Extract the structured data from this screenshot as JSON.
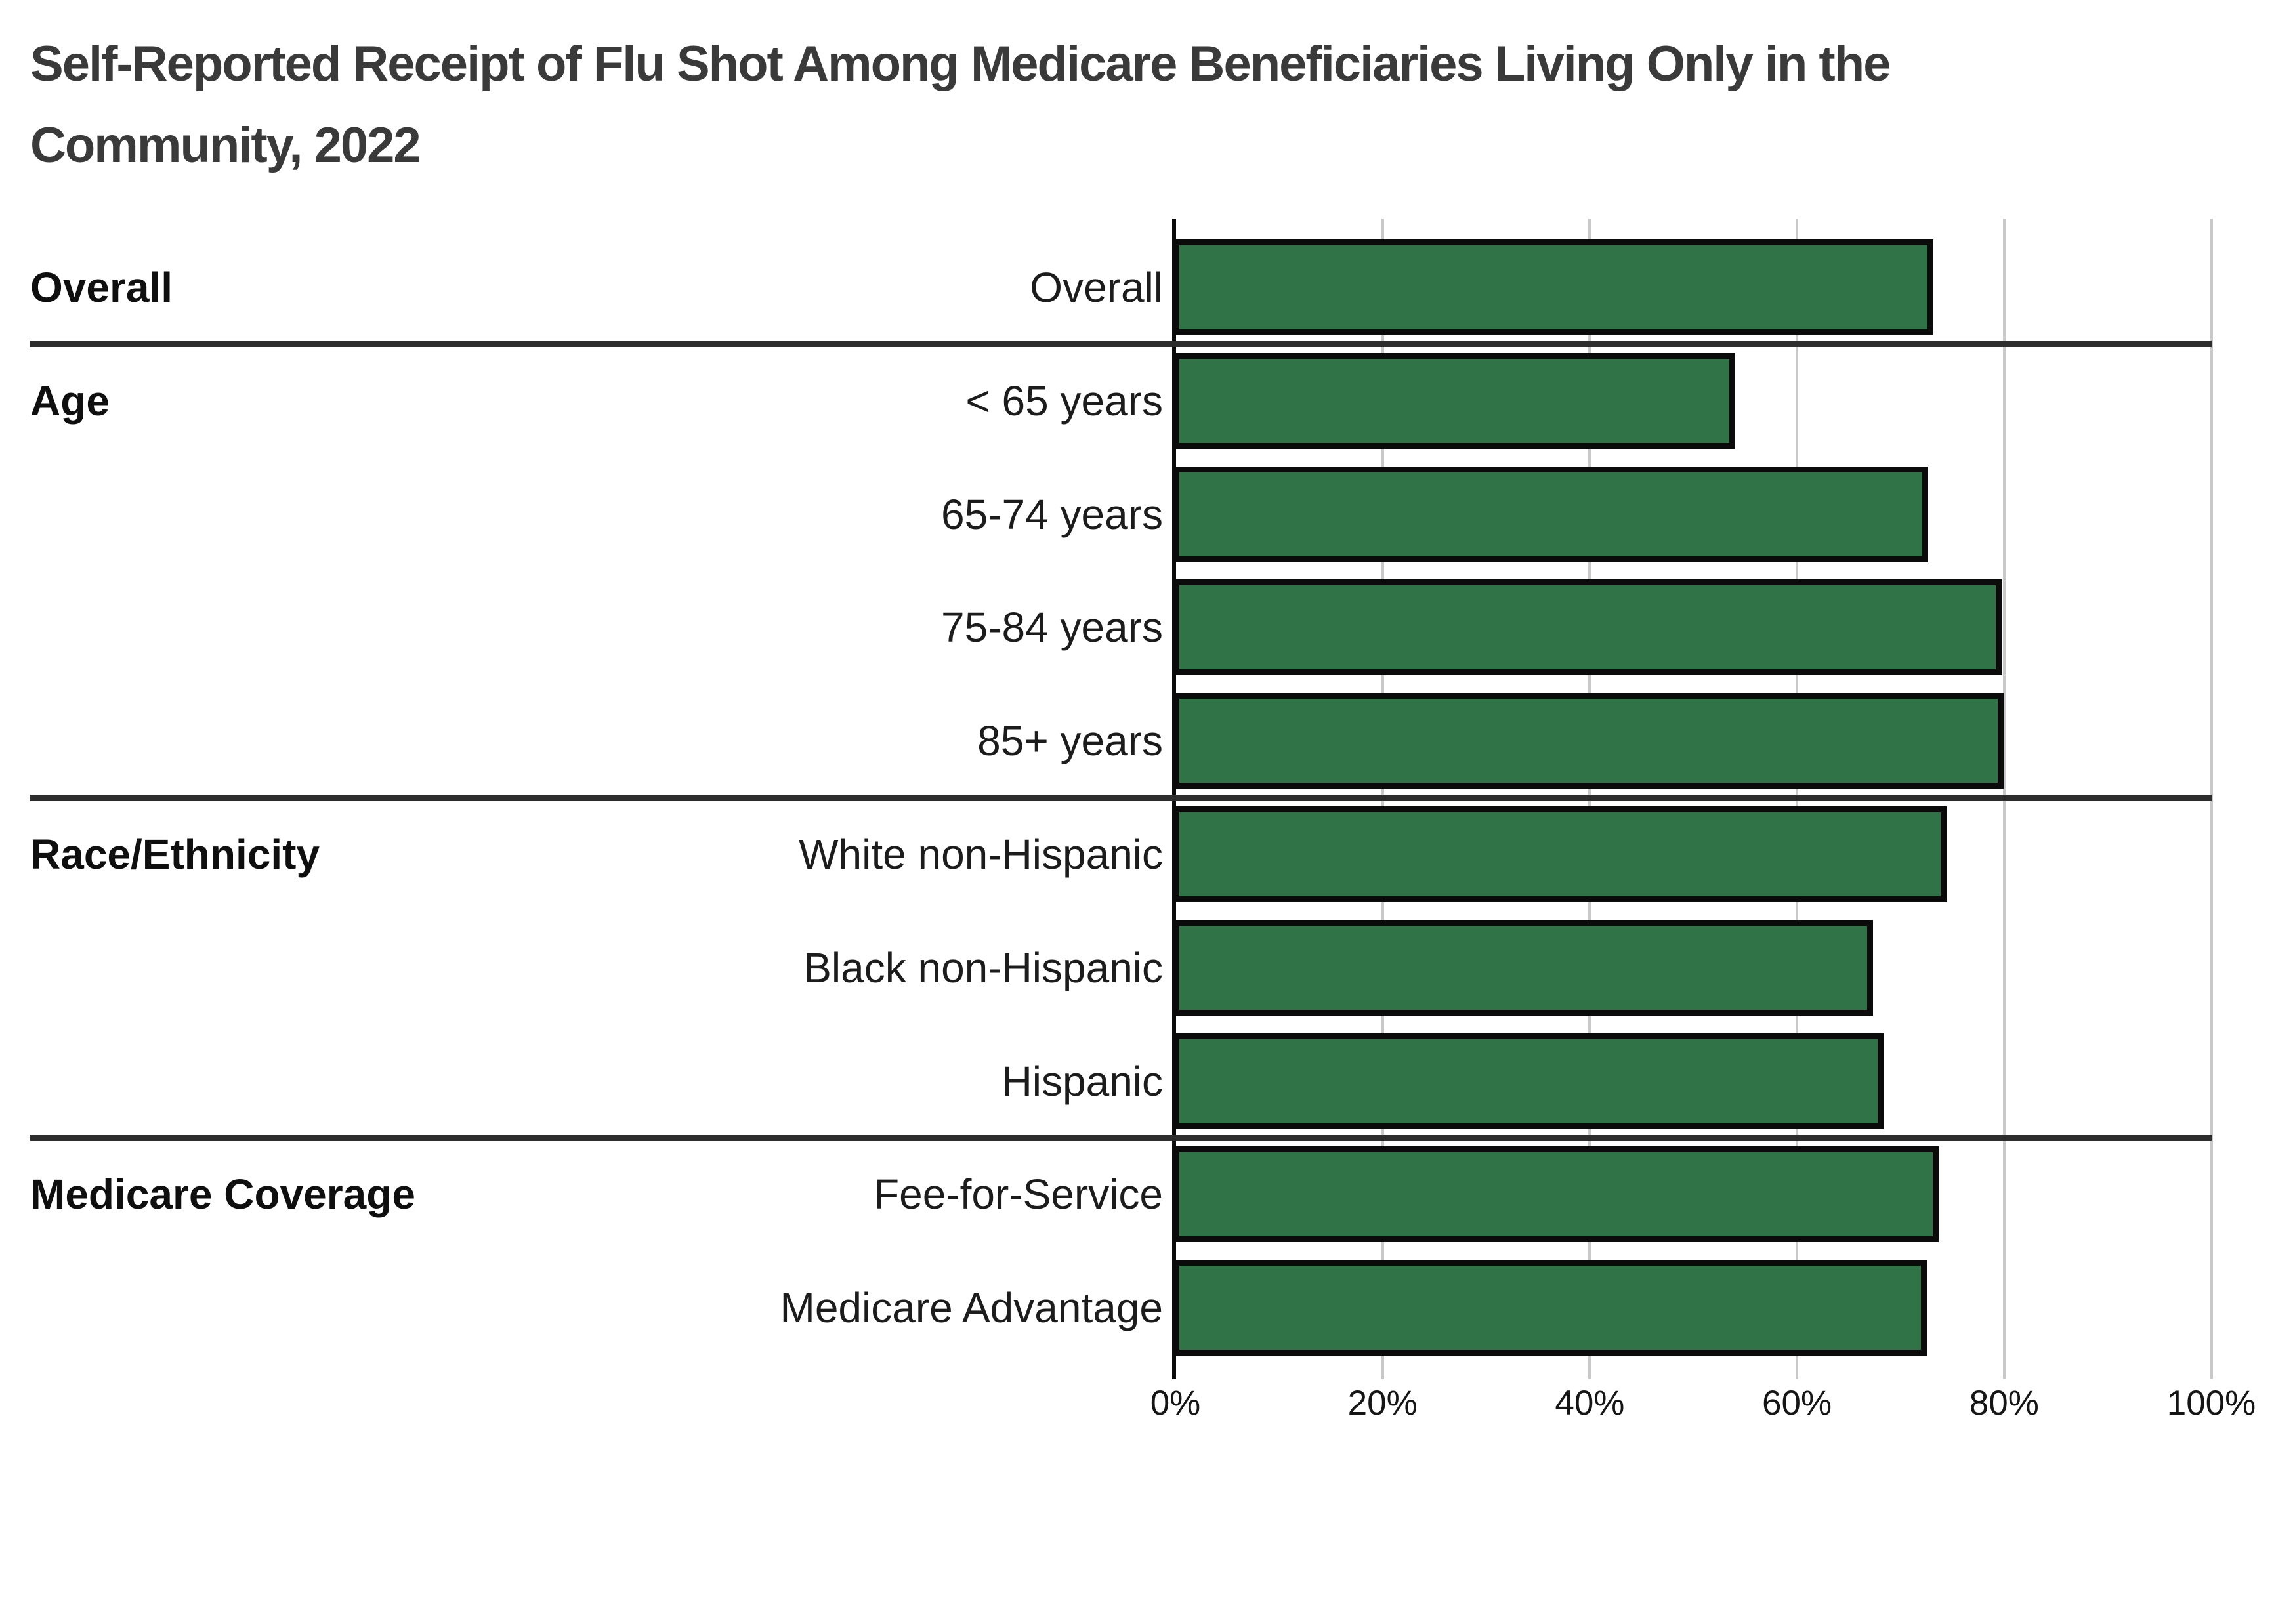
{
  "title": "Self-Reported Receipt of Flu Shot Among Medicare Beneficiaries Living Only in the Community, 2022",
  "title_lines": {
    "line1": "Self-Reported Receipt of Flu Shot Among Medicare Beneficiaries Living Only in the",
    "line2": "Community, 2022"
  },
  "colors": {
    "background": "#ffffff",
    "bar_fill": "#2f7346",
    "bar_border": "#0b0b0b",
    "gridline": "#c9c9c9",
    "axis_line": "#0b0b0b",
    "separator": "#2d2d2d",
    "title_text": "#3a3a3a",
    "label_text": "#1c1c1c"
  },
  "chart_data": {
    "type": "bar",
    "orientation": "horizontal",
    "title": "Self-Reported Receipt of Flu Shot Among Medicare Beneficiaries Living Only in the Community, 2022",
    "unit": "%",
    "xlabel": "",
    "ylabel": "",
    "xlim": [
      0,
      100
    ],
    "x_ticks": [
      "0%",
      "20%",
      "40%",
      "60%",
      "80%",
      "100%"
    ],
    "grid": "vertical",
    "legend_position": "none",
    "groups": [
      {
        "group": "Overall",
        "items": [
          {
            "category": "Overall",
            "value": 73.1
          }
        ]
      },
      {
        "group": "Age",
        "items": [
          {
            "category": "< 65 years",
            "value": 54.0
          },
          {
            "category": "65-74 years",
            "value": 72.6
          },
          {
            "category": "75-84 years",
            "value": 79.7
          },
          {
            "category": "85+ years",
            "value": 79.9
          }
        ]
      },
      {
        "group": "Race/Ethnicity",
        "items": [
          {
            "category": "White non-Hispanic",
            "value": 74.4
          },
          {
            "category": "Black non-Hispanic",
            "value": 67.3
          },
          {
            "category": "Hispanic",
            "value": 68.3
          }
        ]
      },
      {
        "group": "Medicare Coverage",
        "items": [
          {
            "category": "Fee-for-Service",
            "value": 73.6
          },
          {
            "category": "Medicare Advantage",
            "value": 72.5
          }
        ]
      }
    ]
  }
}
